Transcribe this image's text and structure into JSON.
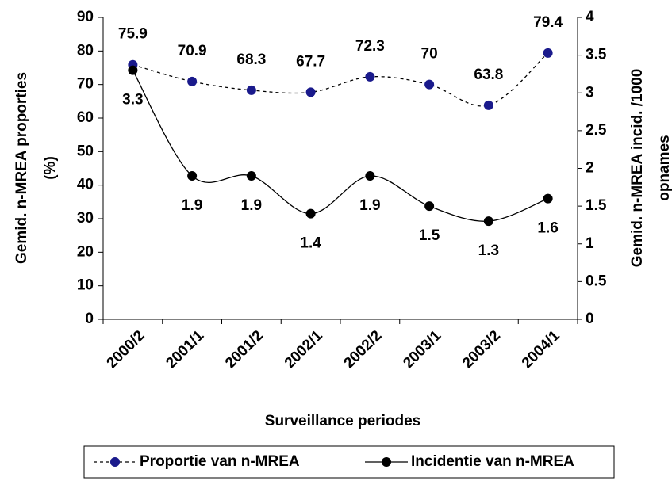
{
  "chart_data": {
    "type": "line",
    "xlabel": "Surveillance periodes",
    "ylabel": [
      "Gemid. n-MREA proporties",
      "(%)"
    ],
    "y2label": [
      "Gemid. n-MREA incid. /1000",
      "opnames"
    ],
    "categories": [
      "2000/2",
      "2001/1",
      "2001/2",
      "2002/1",
      "2002/2",
      "2003/1",
      "2003/2",
      "2004/1"
    ],
    "ylim": [
      0,
      90
    ],
    "yticks": [
      0,
      10,
      20,
      30,
      40,
      50,
      60,
      70,
      80,
      90
    ],
    "y2lim": [
      0,
      4
    ],
    "y2ticks": [
      0,
      0.5,
      1,
      1.5,
      2,
      2.5,
      3,
      3.5,
      4
    ],
    "legend": "bottom",
    "series": [
      {
        "name": "Proportie van n-MREA",
        "color": "#1a1a8c",
        "line_color": "#000000",
        "dashed": true,
        "values": [
          75.9,
          70.9,
          68.3,
          67.7,
          72.3,
          70,
          63.8,
          79.4
        ]
      },
      {
        "name": "Incidentie van n-MREA",
        "color": "#000000",
        "line_color": "#000000",
        "dashed": false,
        "axis": "y2",
        "values": [
          3.3,
          1.9,
          1.9,
          1.4,
          1.9,
          1.5,
          1.3,
          1.6
        ]
      }
    ]
  }
}
